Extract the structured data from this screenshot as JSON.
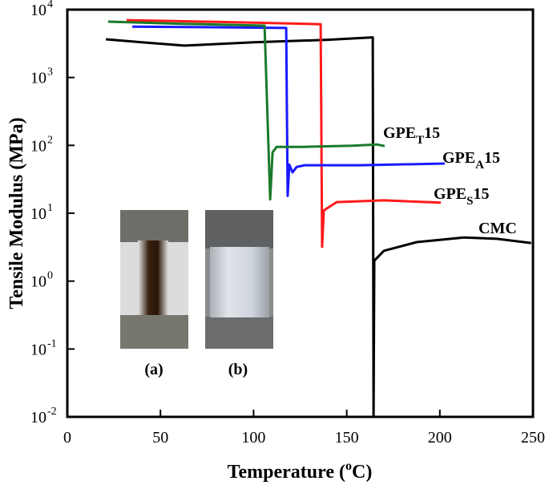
{
  "chart_data": {
    "type": "line",
    "x_label_parts": [
      "Temperature (",
      "o",
      "C)"
    ],
    "y_label": "Tensile Modulus (MPa)",
    "log_y": true,
    "xlim": [
      0,
      250
    ],
    "xticks": [
      0,
      50,
      100,
      150,
      200,
      250
    ],
    "ylim": [
      0.01,
      10000
    ],
    "yticks": [
      {
        "value": 0.01,
        "label": "10",
        "exponent": "-2"
      },
      {
        "value": 0.1,
        "label": "10",
        "exponent": "-1"
      },
      {
        "value": 1,
        "label": "10",
        "exponent": "0"
      },
      {
        "value": 10,
        "label": "10",
        "exponent": "1"
      },
      {
        "value": 100,
        "label": "10",
        "exponent": "2"
      },
      {
        "value": 1000,
        "label": "10",
        "exponent": "3"
      },
      {
        "value": 10000,
        "label": "10",
        "exponent": "4"
      }
    ],
    "photo_labels": [
      "(a)",
      "(b)"
    ],
    "series": [
      {
        "name_parts": [
          "CMC"
        ],
        "color": "#000000",
        "x": [
          20.7,
          40,
          62.8,
          100,
          140,
          164,
          164.4,
          164.8,
          170,
          187.6,
          213,
          230.6,
          249
        ],
        "values": [
          3660,
          3300,
          2950,
          3300,
          3600,
          3900,
          0.01,
          2.0,
          2.8,
          3.76,
          4.4,
          4.2,
          3.65
        ]
      },
      {
        "name_parts": [
          "GPE",
          "S",
          "15"
        ],
        "color": "#ff1a1a",
        "x": [
          31.8,
          80,
          136,
          136.8,
          137.7,
          144.6,
          170,
          200.5
        ],
        "values": [
          7000,
          6600,
          6100,
          3.2,
          11,
          14.6,
          15.5,
          14.3
        ]
      },
      {
        "name_parts": [
          "GPE",
          "A",
          "15"
        ],
        "color": "#1a1aff",
        "x": [
          34.9,
          80,
          117.5,
          118.3,
          119.2,
          120.9,
          123.1,
          127.4,
          157.5,
          202.7
        ],
        "values": [
          5600,
          5500,
          5370,
          18,
          52,
          40,
          48,
          51,
          51,
          54
        ]
      },
      {
        "name_parts": [
          "GPE",
          "T",
          "15"
        ],
        "color": "#1a7a2a",
        "x": [
          21.9,
          60,
          105.9,
          108.9,
          110.2,
          112.4,
          127.4,
          153,
          166,
          170.4
        ],
        "values": [
          6650,
          6200,
          5800,
          16,
          79,
          95,
          95,
          99,
          103,
          98
        ]
      }
    ]
  }
}
